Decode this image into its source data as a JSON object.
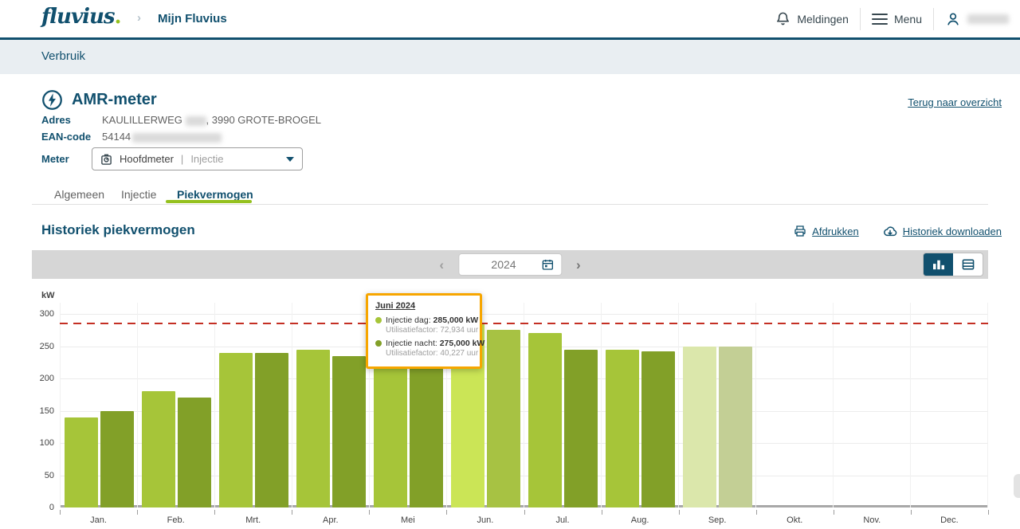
{
  "header": {
    "logo_text": "fluvius",
    "logo_dot": ".",
    "breadcrumb": "Mijn Fluvius",
    "notifications_label": "Meldingen",
    "menu_label": "Menu"
  },
  "subheader": {
    "title": "Verbruik"
  },
  "meter": {
    "title": "AMR-meter",
    "back_link": "Terug naar overzicht",
    "address_label": "Adres",
    "address_prefix": "KAULILLERWEG",
    "address_suffix": ", 3990 GROTE-BROGEL",
    "ean_label": "EAN-code",
    "ean_prefix": "54144",
    "meter_label": "Meter",
    "select": {
      "main": "Hoofdmeter",
      "sep": "|",
      "sub": "Injectie"
    }
  },
  "tabs": [
    {
      "label": "Algemeen",
      "active": false
    },
    {
      "label": "Injectie",
      "active": false
    },
    {
      "label": "Piekvermogen",
      "active": true
    }
  ],
  "section": {
    "title": "Historiek piekvermogen",
    "print_label": "Afdrukken",
    "download_label": "Historiek downloaden"
  },
  "toolbar": {
    "year": "2024"
  },
  "tooltip": {
    "title": "Juni 2024",
    "rows": [
      {
        "label": "Injectie dag:",
        "value": "285,000 kW",
        "sub": "Utilisatiefactor: 72,934 uur",
        "dot_color": "#a6c539"
      },
      {
        "label": "Injectie nacht:",
        "value": "275,000 kW",
        "sub": "Utilisatiefactor: 40,227 uur",
        "dot_color": "#82a028"
      }
    ]
  },
  "chart_data": {
    "type": "bar",
    "title": "Historiek piekvermogen",
    "xlabel": "",
    "ylabel": "kW",
    "ylim": [
      0,
      300
    ],
    "yticks": [
      0,
      50,
      100,
      150,
      200,
      250,
      300
    ],
    "categories": [
      "Jan.",
      "Feb.",
      "Mrt.",
      "Apr.",
      "Mei",
      "Jun.",
      "Jul.",
      "Aug.",
      "Sep.",
      "Okt.",
      "Nov.",
      "Dec."
    ],
    "series": [
      {
        "name": "Injectie dag",
        "values": [
          140,
          180,
          240,
          245,
          240,
          285,
          270,
          245,
          250,
          null,
          null,
          null
        ]
      },
      {
        "name": "Injectie nacht",
        "values": [
          150,
          170,
          240,
          235,
          235,
          275,
          245,
          242,
          250,
          null,
          null,
          null
        ]
      }
    ],
    "reference_line": {
      "value": 285,
      "style": "dashed",
      "color": "#c42f24"
    },
    "highlighted_month": "Jun.",
    "faded_month": "Sep.",
    "grid": true,
    "legend_position": "none"
  },
  "colors": {
    "brand_blue": "#11506e",
    "accent_green": "#95c11f",
    "bar_day": "#a6c539",
    "bar_night": "#82a028",
    "bar_day_hover": "#cbe556",
    "bar_night_hover": "#a7c243",
    "bar_day_faded": "#dbe7ab",
    "bar_night_faded": "#c3cf95",
    "reference_red": "#c42f24",
    "tooltip_border": "#f7a600"
  }
}
